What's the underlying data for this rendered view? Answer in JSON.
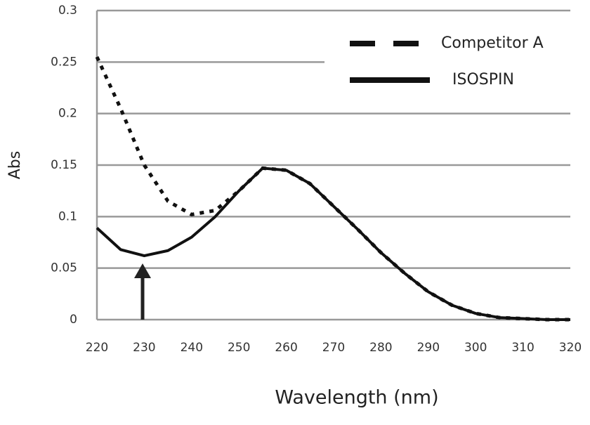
{
  "chart_data": {
    "type": "line",
    "x_label": "Wavelength (nm)",
    "y_label": "Abs",
    "x": [
      220,
      225,
      230,
      235,
      240,
      245,
      250,
      255,
      260,
      265,
      270,
      275,
      280,
      285,
      290,
      295,
      300,
      305,
      310,
      315,
      320
    ],
    "series": [
      {
        "name": "Competitor A",
        "color": "#111111",
        "line_style": "dashed",
        "values": [
          0.255,
          0.205,
          0.15,
          0.115,
          0.102,
          0.106,
          0.125,
          0.147,
          0.145,
          0.132,
          0.11,
          0.088,
          0.065,
          0.045,
          0.027,
          0.014,
          0.006,
          0.002,
          0.001,
          0,
          0
        ]
      },
      {
        "name": "ISOSPIN",
        "color": "#111111",
        "line_style": "solid",
        "values": [
          0.089,
          0.068,
          0.062,
          0.067,
          0.08,
          0.1,
          0.125,
          0.147,
          0.145,
          0.132,
          0.11,
          0.088,
          0.065,
          0.045,
          0.027,
          0.014,
          0.006,
          0.002,
          0.001,
          0,
          0
        ]
      }
    ],
    "xlim": [
      220,
      320
    ],
    "xticks": [
      220,
      230,
      240,
      250,
      260,
      270,
      280,
      290,
      300,
      310,
      320
    ],
    "ylim": [
      0,
      0.3
    ],
    "yticks": [
      0,
      0.05,
      0.1,
      0.15,
      0.2,
      0.25,
      0.3
    ],
    "grid": true,
    "legend": "top-right"
  }
}
